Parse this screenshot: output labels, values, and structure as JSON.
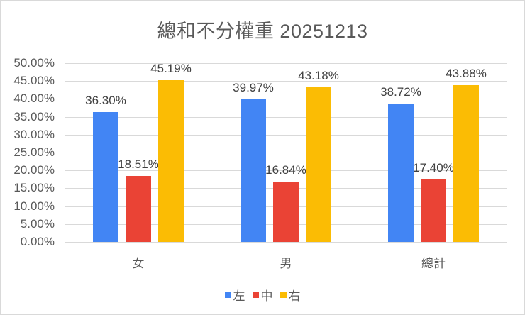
{
  "chart_data": {
    "type": "bar",
    "title": "總和不分權重 20251213",
    "categories": [
      "女",
      "男",
      "總計"
    ],
    "series": [
      {
        "name": "左",
        "color": "#4285f4",
        "values": [
          36.3,
          39.97,
          38.72
        ],
        "labels": [
          "36.30%",
          "39.97%",
          "38.72%"
        ]
      },
      {
        "name": "中",
        "color": "#ea4335",
        "values": [
          18.51,
          16.84,
          17.4
        ],
        "labels": [
          "18.51%",
          "16.84%",
          "17.40%"
        ]
      },
      {
        "name": "右",
        "color": "#fbbc04",
        "values": [
          45.19,
          43.18,
          43.88
        ],
        "labels": [
          "45.19%",
          "43.18%",
          "43.88%"
        ]
      }
    ],
    "xlabel": "",
    "ylabel": "",
    "ylim": [
      0,
      50
    ],
    "yticks": [
      "0.00%",
      "5.00%",
      "10.00%",
      "15.00%",
      "20.00%",
      "25.00%",
      "30.00%",
      "35.00%",
      "40.00%",
      "45.00%",
      "50.00%"
    ],
    "grid": true,
    "legend_position": "bottom"
  }
}
